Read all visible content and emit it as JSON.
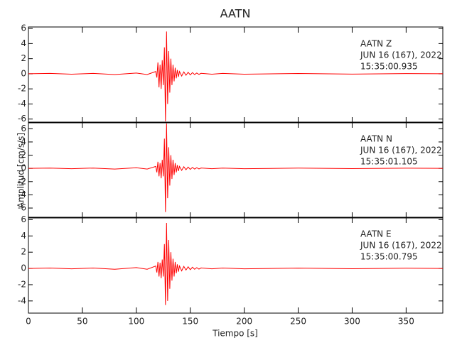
{
  "title": "AATN",
  "ylabel": "Amplitud [cm/s/s]",
  "xlabel": "Tiempo [s]",
  "chart_data": [
    {
      "type": "line",
      "xlim": [
        0,
        384
      ],
      "xticks": [
        0,
        50,
        100,
        150,
        200,
        250,
        300,
        350
      ],
      "ylim": [
        -6.5,
        6.2
      ],
      "yticks": [
        -6,
        -4,
        -2,
        0,
        2,
        4,
        6
      ],
      "annotations": [
        "AATN   Z",
        "JUN 16 (167), 2022",
        "15:35:00.935"
      ],
      "series": [
        {
          "color": "#ff0000",
          "x": [
            0,
            20,
            40,
            60,
            80,
            100,
            110,
            118,
            119,
            120,
            121,
            122,
            123,
            124,
            125,
            126,
            127,
            128,
            129,
            130,
            131,
            132,
            133,
            134,
            135,
            136,
            137,
            138,
            139,
            140,
            142,
            144,
            146,
            148,
            150,
            152,
            154,
            156,
            158,
            160,
            170,
            180,
            200,
            250,
            300,
            350,
            384
          ],
          "values": [
            0,
            0.05,
            -0.05,
            0.05,
            -0.1,
            0.1,
            -0.1,
            0.3,
            -0.5,
            1.5,
            -1.8,
            1.2,
            -2,
            1.8,
            -1.5,
            3.5,
            -6.3,
            5.6,
            -4,
            3,
            -2.5,
            2,
            -1.5,
            1.2,
            -1,
            0.8,
            -0.6,
            0.5,
            -0.4,
            0.3,
            -0.3,
            0.25,
            -0.2,
            0.2,
            -0.15,
            0.15,
            -0.1,
            0.1,
            -0.08,
            0.06,
            -0.05,
            0.05,
            -0.05,
            0.04,
            -0.04,
            0.03,
            0
          ]
        }
      ]
    },
    {
      "type": "line",
      "xlim": [
        0,
        384
      ],
      "xticks": [
        0,
        50,
        100,
        150,
        200,
        250,
        300,
        350
      ],
      "ylim": [
        -7.5,
        7
      ],
      "yticks": [
        -6,
        -4,
        -2,
        0,
        2,
        4,
        6
      ],
      "annotations": [
        "AATN   N",
        "JUN 16 (167), 2022",
        "15:35:01.105"
      ],
      "series": [
        {
          "color": "#ff0000",
          "x": [
            0,
            20,
            40,
            60,
            80,
            100,
            110,
            118,
            119,
            120,
            121,
            122,
            123,
            124,
            125,
            126,
            127,
            128,
            129,
            130,
            131,
            132,
            133,
            134,
            135,
            136,
            137,
            138,
            139,
            140,
            142,
            144,
            146,
            148,
            150,
            152,
            154,
            156,
            158,
            160,
            170,
            180,
            200,
            250,
            300,
            350,
            384
          ],
          "values": [
            0,
            0.05,
            -0.05,
            0.05,
            -0.1,
            0.1,
            -0.1,
            0.3,
            -0.6,
            1,
            -1.2,
            0.8,
            -1.5,
            1.3,
            -1.2,
            4.5,
            -6.6,
            6.8,
            -4.5,
            3.2,
            -2.6,
            2,
            -1.6,
            1.3,
            -1,
            0.8,
            -0.6,
            0.5,
            -0.4,
            0.3,
            -0.3,
            0.25,
            -0.2,
            0.2,
            -0.15,
            0.15,
            -0.1,
            0.1,
            -0.08,
            0.06,
            -0.05,
            0.05,
            -0.05,
            0.04,
            -0.04,
            0.03,
            0
          ]
        }
      ]
    },
    {
      "type": "line",
      "xlim": [
        0,
        384
      ],
      "xticks": [
        0,
        50,
        100,
        150,
        200,
        250,
        300,
        350
      ],
      "ylim": [
        -5.5,
        6.3
      ],
      "yticks": [
        -4,
        -2,
        0,
        2,
        4,
        6
      ],
      "annotations": [
        "AATN   E",
        "JUN 16 (167), 2022",
        "15:35:00.795"
      ],
      "series": [
        {
          "color": "#ff0000",
          "x": [
            0,
            20,
            40,
            60,
            80,
            100,
            110,
            118,
            119,
            120,
            121,
            122,
            123,
            124,
            125,
            126,
            127,
            128,
            129,
            130,
            131,
            132,
            133,
            134,
            135,
            136,
            137,
            138,
            139,
            140,
            142,
            144,
            146,
            148,
            150,
            152,
            154,
            156,
            158,
            160,
            170,
            180,
            200,
            250,
            300,
            350,
            384
          ],
          "values": [
            0,
            0.05,
            -0.05,
            0.05,
            -0.1,
            0.1,
            -0.1,
            0.3,
            -0.5,
            0.8,
            -1,
            0.7,
            -1.2,
            1.1,
            -1,
            3,
            -4.5,
            5.6,
            -4,
            3.5,
            -2.5,
            2,
            -1.5,
            1.2,
            -1,
            0.8,
            -0.6,
            0.5,
            -0.4,
            0.3,
            -0.3,
            0.25,
            -0.2,
            0.2,
            -0.15,
            0.15,
            -0.1,
            0.1,
            -0.08,
            0.06,
            -0.05,
            0.05,
            -0.05,
            0.04,
            -0.04,
            0.03,
            0
          ]
        }
      ]
    }
  ]
}
